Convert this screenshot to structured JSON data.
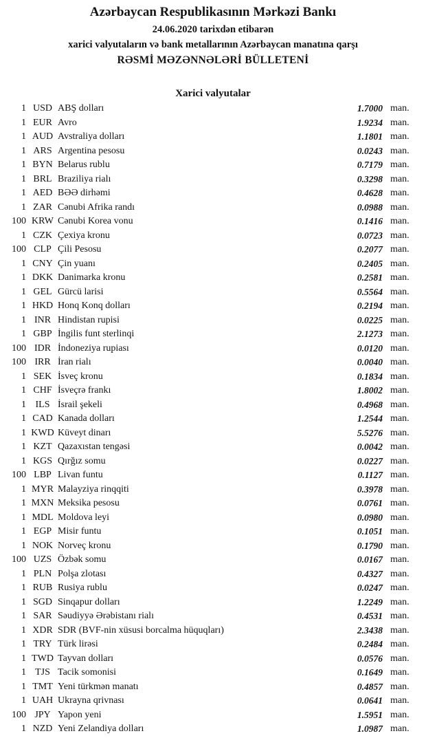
{
  "header": {
    "bank_name": "Azərbaycan Respublikasının Mərkəzi Bankı",
    "date_line": "24.06.2020 tarixdən etibarən",
    "scope_line": "xarici valyutaların və bank metallarının Azərbaycan manatına qarşı",
    "bulletin_title": "RƏSMİ MƏZƏNNƏLƏRİ BÜLLETENİ"
  },
  "section": {
    "title": "Xarici valyutalar"
  },
  "colors": {
    "text": "#141414",
    "background": "#ffffff"
  },
  "table": {
    "unit_label": "man.",
    "rows": [
      {
        "qty": "1",
        "code": "USD",
        "name": "ABŞ dolları",
        "rate": "1.7000"
      },
      {
        "qty": "1",
        "code": "EUR",
        "name": "Avro",
        "rate": "1.9234"
      },
      {
        "qty": "1",
        "code": "AUD",
        "name": "Avstraliya dolları",
        "rate": "1.1801"
      },
      {
        "qty": "1",
        "code": "ARS",
        "name": "Argentina pesosu",
        "rate": "0.0243"
      },
      {
        "qty": "1",
        "code": "BYN",
        "name": "Belarus rublu",
        "rate": "0.7179"
      },
      {
        "qty": "1",
        "code": "BRL",
        "name": "Braziliya rialı",
        "rate": "0.3298"
      },
      {
        "qty": "1",
        "code": "AED",
        "name": "BƏƏ dirhəmi",
        "rate": "0.4628"
      },
      {
        "qty": "1",
        "code": "ZAR",
        "name": "Cənubi Afrika randı",
        "rate": "0.0988"
      },
      {
        "qty": "100",
        "code": "KRW",
        "name": "Cənubi Korea vonu",
        "rate": "0.1416"
      },
      {
        "qty": "1",
        "code": "CZK",
        "name": "Çexiya kronu",
        "rate": "0.0723"
      },
      {
        "qty": "100",
        "code": "CLP",
        "name": "Çili Pesosu",
        "rate": "0.2077"
      },
      {
        "qty": "1",
        "code": "CNY",
        "name": "Çin yuanı",
        "rate": "0.2405"
      },
      {
        "qty": "1",
        "code": "DKK",
        "name": "Danimarka kronu",
        "rate": "0.2581"
      },
      {
        "qty": "1",
        "code": "GEL",
        "name": "Gürcü larisi",
        "rate": "0.5564"
      },
      {
        "qty": "1",
        "code": "HKD",
        "name": "Honq Konq dolları",
        "rate": "0.2194"
      },
      {
        "qty": "1",
        "code": "INR",
        "name": "Hindistan rupisi",
        "rate": "0.0225"
      },
      {
        "qty": "1",
        "code": "GBP",
        "name": "İngilis funt sterlinqi",
        "rate": "2.1273"
      },
      {
        "qty": "100",
        "code": "IDR",
        "name": "İndoneziya rupiası",
        "rate": "0.0120"
      },
      {
        "qty": "100",
        "code": "IRR",
        "name": "İran rialı",
        "rate": "0.0040"
      },
      {
        "qty": "1",
        "code": "SEK",
        "name": "İsveç kronu",
        "rate": "0.1834"
      },
      {
        "qty": "1",
        "code": "CHF",
        "name": "İsveçrə frankı",
        "rate": "1.8002"
      },
      {
        "qty": "1",
        "code": "ILS",
        "name": "İsrail şekeli",
        "rate": "0.4968"
      },
      {
        "qty": "1",
        "code": "CAD",
        "name": "Kanada dolları",
        "rate": "1.2544"
      },
      {
        "qty": "1",
        "code": "KWD",
        "name": "Küveyt dinarı",
        "rate": "5.5276"
      },
      {
        "qty": "1",
        "code": "KZT",
        "name": "Qazaxıstan tengəsi",
        "rate": "0.0042"
      },
      {
        "qty": "1",
        "code": "KGS",
        "name": "Qırğız somu",
        "rate": "0.0227"
      },
      {
        "qty": "100",
        "code": "LBP",
        "name": "Livan funtu",
        "rate": "0.1127"
      },
      {
        "qty": "1",
        "code": "MYR",
        "name": "Malayziya rinqqiti",
        "rate": "0.3978"
      },
      {
        "qty": "1",
        "code": "MXN",
        "name": "Meksika pesosu",
        "rate": "0.0761"
      },
      {
        "qty": "1",
        "code": "MDL",
        "name": "Moldova leyi",
        "rate": "0.0980"
      },
      {
        "qty": "1",
        "code": "EGP",
        "name": "Misir funtu",
        "rate": "0.1051"
      },
      {
        "qty": "1",
        "code": "NOK",
        "name": "Norveç kronu",
        "rate": "0.1790"
      },
      {
        "qty": "100",
        "code": "UZS",
        "name": "Özbək somu",
        "rate": "0.0167"
      },
      {
        "qty": "1",
        "code": "PLN",
        "name": "Polşa zlotası",
        "rate": "0.4327"
      },
      {
        "qty": "1",
        "code": "RUB",
        "name": "Rusiya rublu",
        "rate": "0.0247"
      },
      {
        "qty": "1",
        "code": "SGD",
        "name": "Sinqapur dolları",
        "rate": "1.2249"
      },
      {
        "qty": "1",
        "code": "SAR",
        "name": "Səudiyyə Ərəbistanı rialı",
        "rate": "0.4531"
      },
      {
        "qty": "1",
        "code": "XDR",
        "name": "SDR (BVF-nin xüsusi borcalma hüquqları)",
        "rate": "2.3438"
      },
      {
        "qty": "1",
        "code": "TRY",
        "name": "Türk lirəsi",
        "rate": "0.2484"
      },
      {
        "qty": "1",
        "code": "TWD",
        "name": "Tayvan dolları",
        "rate": "0.0576"
      },
      {
        "qty": "1",
        "code": "TJS",
        "name": "Tacik somonisi",
        "rate": "0.1649"
      },
      {
        "qty": "1",
        "code": "TMT",
        "name": "Yeni türkmən manatı",
        "rate": "0.4857"
      },
      {
        "qty": "1",
        "code": "UAH",
        "name": "Ukrayna qrivnası",
        "rate": "0.0641"
      },
      {
        "qty": "100",
        "code": "JPY",
        "name": "Yapon yeni",
        "rate": "1.5951"
      },
      {
        "qty": "1",
        "code": "NZD",
        "name": "Yeni Zelandiya dolları",
        "rate": "1.0987"
      }
    ]
  }
}
